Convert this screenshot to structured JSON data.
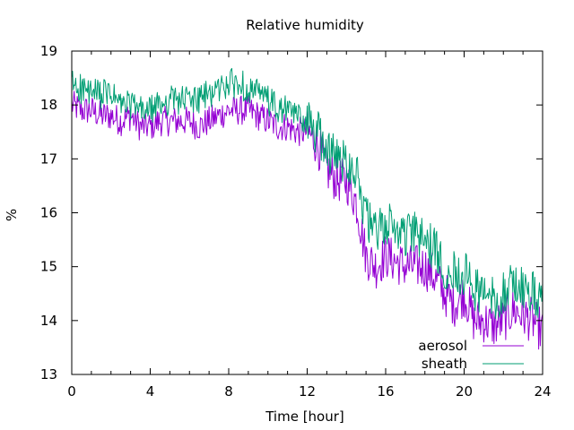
{
  "chart_data": {
    "type": "line",
    "title": "Relative humidity",
    "xlabel": "Time [hour]",
    "ylabel": "%",
    "xlim": [
      0,
      24
    ],
    "ylim": [
      13,
      19
    ],
    "xticks": [
      0,
      4,
      8,
      12,
      16,
      20,
      24
    ],
    "yticks": [
      13,
      14,
      15,
      16,
      17,
      18,
      19
    ],
    "xtick_labels": [
      "0",
      "4",
      "8",
      "12",
      "16",
      "20",
      "24"
    ],
    "ytick_labels": [
      "13",
      "14",
      "15",
      "16",
      "17",
      "18",
      "19"
    ],
    "grid": false,
    "legend_position": "bottom-right",
    "series": [
      {
        "name": "aerosol",
        "color": "#9400d3",
        "x": [
          0,
          0.5,
          1,
          1.5,
          2,
          2.5,
          3,
          3.5,
          4,
          4.5,
          5,
          5.5,
          6,
          6.5,
          7,
          7.5,
          8,
          8.5,
          9,
          9.5,
          10,
          10.5,
          11,
          11.5,
          12,
          12.5,
          13,
          13.5,
          14,
          14.5,
          15,
          15.5,
          16,
          16.5,
          17,
          17.5,
          18,
          18.5,
          19,
          19.5,
          20,
          20.5,
          21,
          21.5,
          22,
          22.5,
          23,
          23.5,
          24
        ],
        "y": [
          18.0,
          17.9,
          17.9,
          17.8,
          17.8,
          17.7,
          17.8,
          17.6,
          17.6,
          17.7,
          17.7,
          17.7,
          17.7,
          17.6,
          17.7,
          17.8,
          17.9,
          17.9,
          17.9,
          17.8,
          17.7,
          17.6,
          17.6,
          17.5,
          17.5,
          17.3,
          16.8,
          16.6,
          16.6,
          16.2,
          15.2,
          15.0,
          15.2,
          15.1,
          15.0,
          15.0,
          15.0,
          14.8,
          14.5,
          14.3,
          14.5,
          14.0,
          14.0,
          13.9,
          14.0,
          14.2,
          14.1,
          14.0,
          13.8
        ]
      },
      {
        "name": "sheath",
        "color": "#009e73",
        "x": [
          0,
          0.5,
          1,
          1.5,
          2,
          2.5,
          3,
          3.5,
          4,
          4.5,
          5,
          5.5,
          6,
          6.5,
          7,
          7.5,
          8,
          8.5,
          9,
          9.5,
          10,
          10.5,
          11,
          11.5,
          12,
          12.5,
          13,
          13.5,
          14,
          14.5,
          15,
          15.5,
          16,
          16.5,
          17,
          17.5,
          18,
          18.5,
          19,
          19.5,
          20,
          20.5,
          21,
          21.5,
          22,
          22.5,
          23,
          23.5,
          24
        ],
        "y": [
          18.4,
          18.3,
          18.2,
          18.2,
          18.2,
          18.0,
          18.0,
          17.9,
          17.9,
          18.0,
          18.1,
          18.1,
          18.1,
          18.1,
          18.2,
          18.3,
          18.4,
          18.4,
          18.3,
          18.2,
          18.1,
          17.9,
          17.9,
          17.8,
          17.7,
          17.5,
          17.2,
          17.0,
          17.0,
          16.8,
          15.9,
          15.6,
          15.8,
          15.7,
          15.6,
          15.6,
          15.5,
          15.3,
          15.0,
          14.9,
          14.9,
          14.6,
          14.5,
          14.4,
          14.5,
          14.7,
          14.6,
          14.5,
          14.3
        ]
      }
    ]
  }
}
